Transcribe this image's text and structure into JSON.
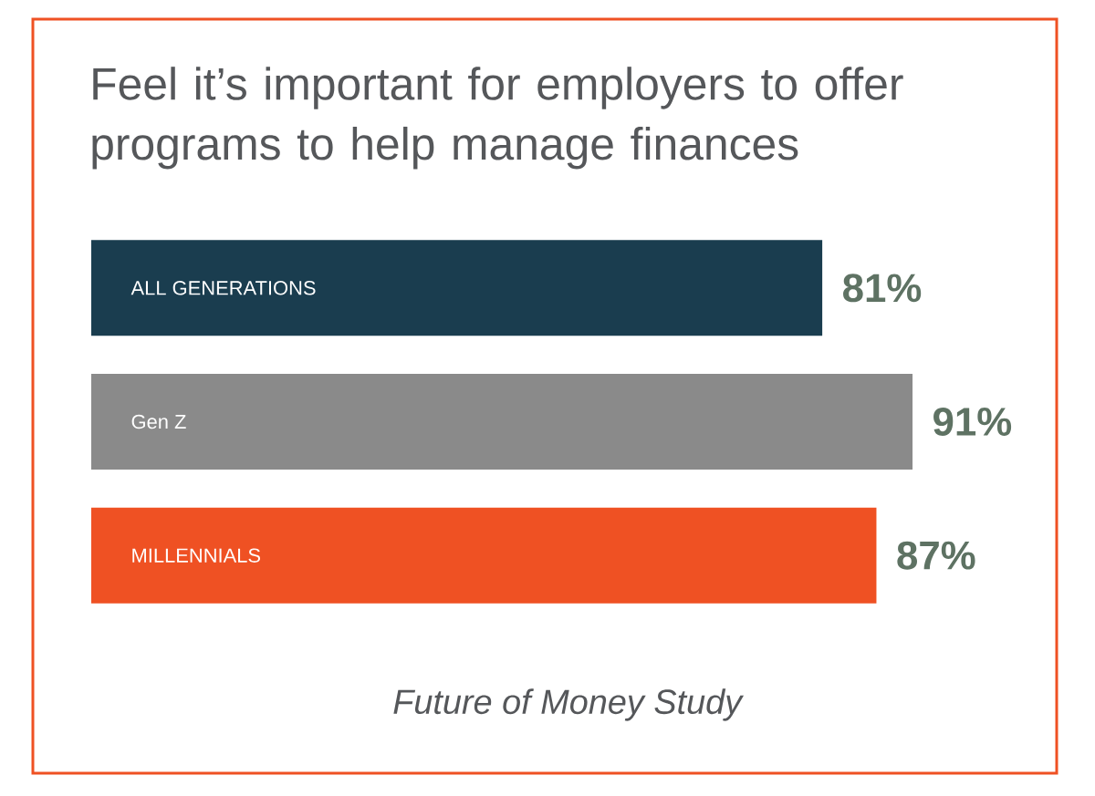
{
  "chart_data": {
    "type": "bar",
    "orientation": "horizontal",
    "title": "Feel it’s important for employers to offer programs to help manage finances",
    "categories": [
      "ALL GENERATIONS",
      "Gen Z",
      "MILLENNIALS"
    ],
    "values": [
      81,
      91,
      87
    ],
    "value_labels": [
      "81%",
      "91%",
      "87%"
    ],
    "colors": [
      "#1a3d4f",
      "#8a8a8a",
      "#ef5123"
    ],
    "annotations": [
      "*Future of Money Study*"
    ]
  }
}
